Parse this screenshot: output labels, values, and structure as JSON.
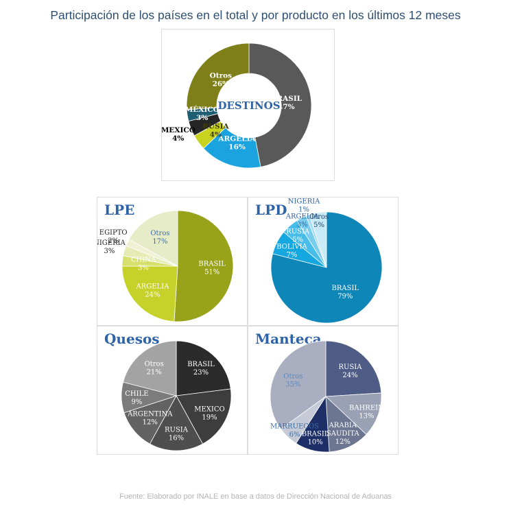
{
  "title": "Participación de los países en el total y por producto en los últimos 12 meses",
  "source": "Fuente: Elaborado por INALE en base a datos de Dirección Nacional de Aduanas",
  "chart_data": [
    {
      "type": "pie",
      "variant": "donut",
      "center_label": "DESTINOS",
      "categories": [
        "BRASIL",
        "ARGELIA",
        "RUSIA",
        "MEXICO",
        "MÉXICO",
        "Otros"
      ],
      "values": [
        47,
        16,
        4,
        4,
        3,
        26
      ],
      "colors": [
        "#595959",
        "#1aa3de",
        "#c7d31e",
        "#262626",
        "#1d5e73",
        "#7f7f1a"
      ]
    },
    {
      "type": "pie",
      "title": "LPE",
      "categories": [
        "BRASIL",
        "ARGELIA",
        "CHINA",
        "NIGERIA",
        "EGIPTO",
        "Otros"
      ],
      "values": [
        51,
        24,
        3,
        3,
        2,
        17
      ],
      "colors": [
        "#99a31a",
        "#c6d12a",
        "#d7e06c",
        "#e4ebb4",
        "#eef2d3",
        "#e6ebc8"
      ]
    },
    {
      "type": "pie",
      "title": "LPD",
      "categories": [
        "BRASIL",
        "BOLIVIA",
        "RUSIA",
        "ARGELIA",
        "NIGERIA",
        "Otros"
      ],
      "values": [
        79,
        7,
        5,
        3,
        1,
        5
      ],
      "colors": [
        "#0f86b8",
        "#15a8e0",
        "#48bde9",
        "#78cdef",
        "#a4ddf4",
        "#c9ebf8"
      ]
    },
    {
      "type": "pie",
      "title": "Quesos",
      "categories": [
        "BRASIL",
        "MEXICO",
        "RUSIA",
        "ARGENTINA",
        "CHILE",
        "Otros"
      ],
      "values": [
        23,
        19,
        16,
        12,
        9,
        21
      ],
      "colors": [
        "#2b2b2b",
        "#3d3d3d",
        "#4e4e4e",
        "#636363",
        "#7c7c7c",
        "#a3a3a3"
      ]
    },
    {
      "type": "pie",
      "title": "Manteca",
      "categories": [
        "RUSIA",
        "BAHREIN",
        "ARABIA SAUDITA",
        "BRASIL",
        "MARRUECOS",
        "Otros"
      ],
      "values": [
        24,
        13,
        12,
        10,
        6,
        35
      ],
      "colors": [
        "#4f5d86",
        "#9aa1b4",
        "#6d7691",
        "#1d2f66",
        "#c6cad6",
        "#a9afc0"
      ]
    }
  ]
}
